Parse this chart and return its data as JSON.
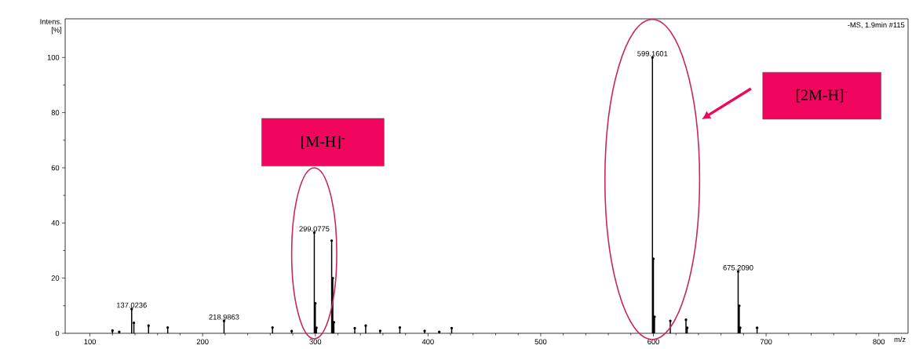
{
  "chart_data": {
    "type": "lollipop",
    "marker": "circle",
    "xlabel": "m/z",
    "ylabel": "Intens. [%]",
    "annotations": [
      "-MS, 1.9min #115",
      "[M-H]$^{-}$",
      "[2M-H]$^{-}$",
      {
        "text": "137.0236",
        "x": 137.0236,
        "y": 8.8
      },
      {
        "text": "218.9863",
        "x": 218.9863,
        "y": 4.5
      },
      {
        "text": "299.0775",
        "x": 299.0775,
        "y": 36.5
      },
      {
        "text": "599.1601",
        "x": 599.1601,
        "y": 100
      },
      {
        "text": "675.2090",
        "x": 675.209,
        "y": 22.4
      }
    ],
    "x": [
      120,
      126,
      137.0236,
      139,
      152,
      169,
      218.9863,
      262,
      279,
      299.0775,
      300,
      301,
      314.5,
      315.5,
      316.5,
      335,
      344.7,
      357.5,
      375,
      397,
      410,
      421,
      599.1601,
      600,
      601,
      615,
      628.9,
      630,
      675.209,
      676.2,
      677,
      692
    ],
    "values": [
      1.0,
      0.5,
      8.8,
      3.8,
      2.8,
      2.1,
      4.5,
      2.1,
      0.8,
      36.5,
      10.9,
      2,
      33.6,
      20,
      4,
      1.9,
      2.8,
      0.9,
      2.1,
      0.9,
      0.5,
      1.9,
      100,
      27,
      6,
      4.5,
      4.9,
      2,
      22.4,
      10,
      2,
      2
    ],
    "color": "#000000",
    "xlim": [
      78,
      826
    ],
    "xticks": [
      100,
      200,
      300,
      400,
      500,
      600,
      700,
      800
    ],
    "ylim": [
      0,
      114
    ],
    "yticks": [
      0,
      20,
      40,
      60,
      80,
      100
    ]
  }
}
